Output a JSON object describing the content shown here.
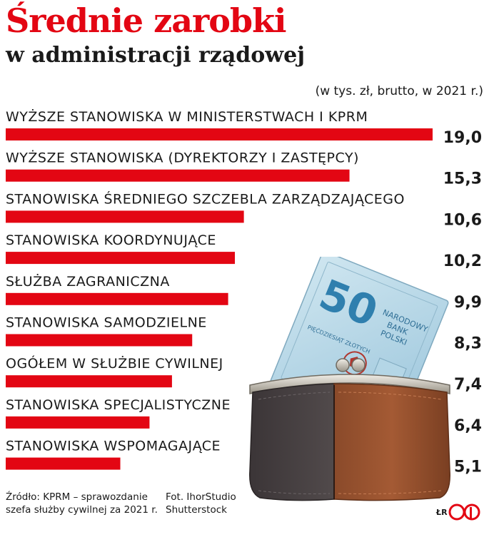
{
  "header": {
    "title": "Średnie zarobki",
    "subtitle": "w administracji rządowej",
    "unit_note": "(w tys. zł, brutto, w 2021 r.)"
  },
  "chart_data": {
    "type": "bar",
    "orientation": "horizontal",
    "categories": [
      "WYŻSZE STANOWISKA W MINISTERSTWACH I KPRM",
      "WYŻSZE STANOWISKA (DYREKTORZY I ZASTĘPCY)",
      "STANOWISKA ŚREDNIEGO SZCZEBLA ZARZĄDZAJĄCEGO",
      "STANOWISKA KOORDYNUJĄCE",
      "SŁUŻBA ZAGRANICZNA",
      "STANOWISKA SAMODZIELNE",
      "OGÓŁEM W SŁUŻBIE CYWILNEJ",
      "STANOWISKA SPECJALISTYCZNE",
      "STANOWISKA WSPOMAGAJĄCE"
    ],
    "values": [
      19.0,
      15.3,
      10.6,
      10.2,
      9.9,
      8.3,
      7.4,
      6.4,
      5.1
    ],
    "value_labels": [
      "19,0",
      "15,3",
      "10,6",
      "10,2",
      "9,9",
      "8,3",
      "7,4",
      "6,4",
      "5,1"
    ],
    "bar_color": "#e30613",
    "xlim": [
      0,
      19.0
    ],
    "grid": false,
    "legend": "none"
  },
  "footer": {
    "source_line1": "Źródło: KPRM – sprawozdanie",
    "source_line2": "szefa służby cywilnej za 2021 r.",
    "photo_line1": "Fot. IhorStudio",
    "photo_line2": "Shutterstock",
    "author": "ŁR"
  },
  "art": {
    "banknote_value": "50",
    "banknote_text1": "NARODOWY",
    "banknote_text2": "BANK",
    "banknote_text3": "POLSKI",
    "banknote_text4": "PIĘĆDZIESIĄT ZŁOTYCH",
    "accent_color": "#e30613"
  }
}
